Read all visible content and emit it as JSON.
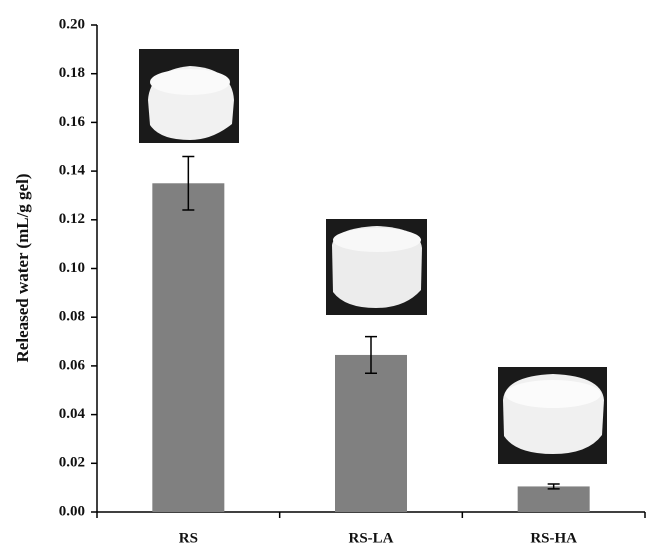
{
  "chart_data": {
    "type": "bar",
    "y_label": "Released water (mL/g gel)",
    "categories": [
      "RS",
      "RS-LA",
      "RS-HA"
    ],
    "values": [
      0.135,
      0.0645,
      0.0105
    ],
    "errors": [
      0.011,
      0.0075,
      0.001
    ],
    "color": "#808080",
    "ylim": [
      0,
      0.2
    ],
    "yticks": [
      {
        "value": 0,
        "label": "0.00"
      },
      0.02,
      0.04,
      0.06,
      0.08,
      {
        "value": 0.1,
        "label": "0.10"
      },
      0.12,
      0.14,
      0.16,
      0.18,
      {
        "value": 0.2,
        "label": "0.20"
      }
    ]
  }
}
